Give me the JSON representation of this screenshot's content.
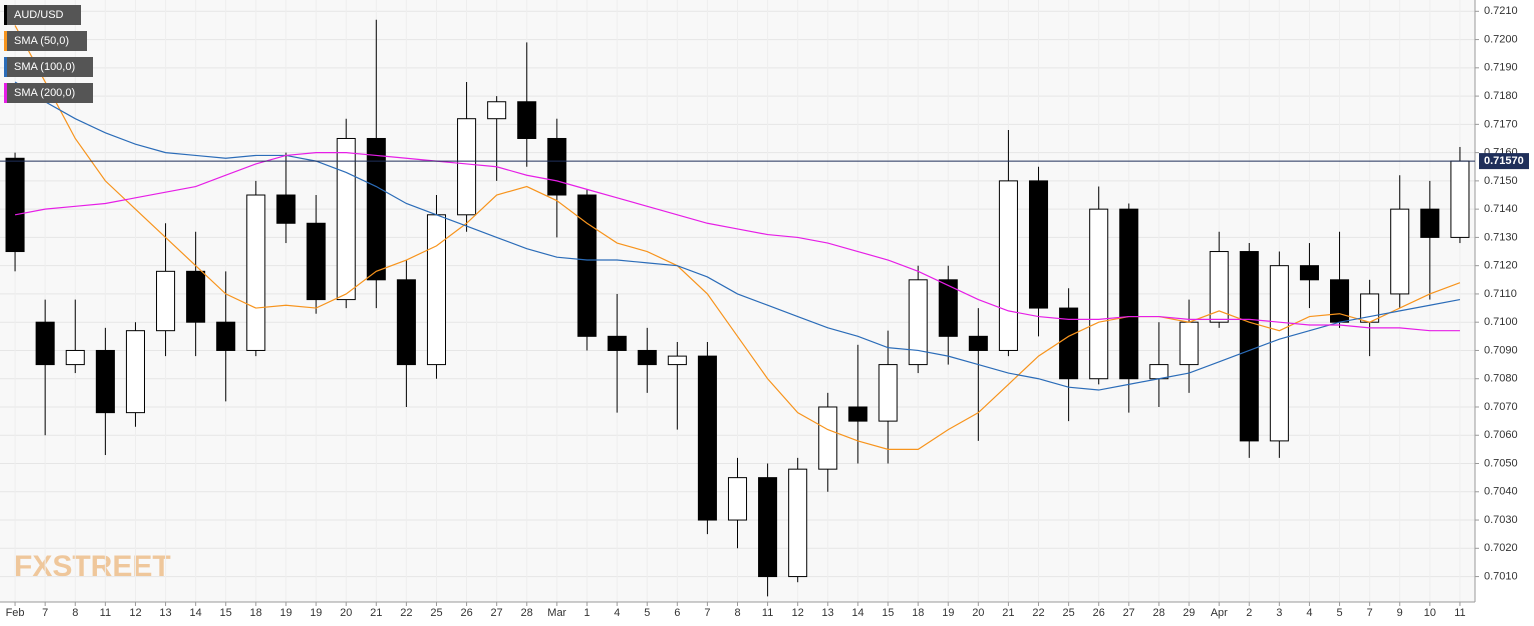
{
  "chart_data": {
    "type": "candlestick",
    "symbol": "AUD/USD",
    "watermark": "FXSTREET",
    "categories": [
      "Feb",
      "7",
      "8",
      "11",
      "12",
      "13",
      "14",
      "15",
      "18",
      "19",
      "19",
      "20",
      "21",
      "22",
      "25",
      "26",
      "27",
      "28",
      "Mar",
      "1",
      "4",
      "5",
      "6",
      "7",
      "8",
      "11",
      "12",
      "13",
      "14",
      "15",
      "18",
      "19",
      "20",
      "21",
      "22",
      "25",
      "26",
      "27",
      "28",
      "29",
      "Apr",
      "2",
      "3",
      "4",
      "5",
      "7",
      "9",
      "10",
      "11"
    ],
    "open": [
      0.7158,
      0.71,
      0.7085,
      0.709,
      0.7068,
      0.7097,
      0.7118,
      0.71,
      0.709,
      0.7145,
      0.7135,
      0.7108,
      0.7165,
      0.7115,
      0.7085,
      0.7138,
      0.7172,
      0.7178,
      0.7165,
      0.7145,
      0.7095,
      0.709,
      0.7085,
      0.7088,
      0.703,
      0.7045,
      0.701,
      0.7048,
      0.707,
      0.7065,
      0.7085,
      0.7115,
      0.7095,
      0.709,
      0.715,
      0.7105,
      0.708,
      0.714,
      0.708,
      0.7085,
      0.71,
      0.7125,
      0.7058,
      0.712,
      0.7115,
      0.71,
      0.711,
      0.714,
      0.713
    ],
    "high": [
      0.716,
      0.7108,
      0.7108,
      0.7098,
      0.71,
      0.7135,
      0.7132,
      0.7118,
      0.715,
      0.716,
      0.7145,
      0.7172,
      0.7207,
      0.7122,
      0.7145,
      0.7185,
      0.718,
      0.7199,
      0.7172,
      0.7147,
      0.711,
      0.7098,
      0.7093,
      0.7093,
      0.7052,
      0.705,
      0.7052,
      0.7075,
      0.7092,
      0.7097,
      0.712,
      0.712,
      0.7105,
      0.7168,
      0.7155,
      0.7112,
      0.7148,
      0.7142,
      0.71,
      0.7108,
      0.7132,
      0.7128,
      0.7125,
      0.7128,
      0.7132,
      0.7115,
      0.7152,
      0.715,
      0.7162
    ],
    "low": [
      0.7118,
      0.706,
      0.7082,
      0.7053,
      0.7063,
      0.7088,
      0.7088,
      0.7072,
      0.7088,
      0.7128,
      0.7103,
      0.7105,
      0.7105,
      0.707,
      0.708,
      0.7132,
      0.715,
      0.7155,
      0.713,
      0.709,
      0.7068,
      0.7075,
      0.7062,
      0.7025,
      0.702,
      0.7003,
      0.7008,
      0.704,
      0.705,
      0.705,
      0.7082,
      0.7085,
      0.7058,
      0.7088,
      0.7095,
      0.7065,
      0.7078,
      0.7068,
      0.707,
      0.7075,
      0.7098,
      0.7052,
      0.7052,
      0.7105,
      0.7098,
      0.7088,
      0.7105,
      0.7108,
      0.7128
    ],
    "close": [
      0.7125,
      0.7085,
      0.709,
      0.7068,
      0.7097,
      0.7118,
      0.71,
      0.709,
      0.7145,
      0.7135,
      0.7108,
      0.7165,
      0.7115,
      0.7085,
      0.7138,
      0.7172,
      0.7178,
      0.7165,
      0.7145,
      0.7095,
      0.709,
      0.7085,
      0.7088,
      0.703,
      0.7045,
      0.701,
      0.7048,
      0.707,
      0.7065,
      0.7085,
      0.7115,
      0.7095,
      0.709,
      0.715,
      0.7105,
      0.708,
      0.714,
      0.708,
      0.7085,
      0.71,
      0.7125,
      0.7058,
      0.712,
      0.7115,
      0.71,
      0.711,
      0.714,
      0.713,
      0.7157
    ],
    "series": [
      {
        "name": "SMA (50,0)",
        "color": "#f7941d",
        "values": [
          0.7205,
          0.7185,
          0.7165,
          0.715,
          0.714,
          0.713,
          0.712,
          0.711,
          0.7105,
          0.7106,
          0.7105,
          0.711,
          0.7118,
          0.7122,
          0.7127,
          0.7135,
          0.7145,
          0.7148,
          0.7143,
          0.7135,
          0.7128,
          0.7125,
          0.712,
          0.711,
          0.7095,
          0.708,
          0.7068,
          0.7062,
          0.7058,
          0.7055,
          0.7055,
          0.7062,
          0.7068,
          0.7078,
          0.7088,
          0.7095,
          0.71,
          0.7102,
          0.7102,
          0.71,
          0.7104,
          0.71,
          0.7097,
          0.7102,
          0.7103,
          0.71,
          0.7105,
          0.711,
          0.7114
        ]
      },
      {
        "name": "SMA (100,0)",
        "color": "#2b6cb8",
        "values": [
          0.7185,
          0.7178,
          0.7172,
          0.7167,
          0.7163,
          0.716,
          0.7159,
          0.7158,
          0.7159,
          0.7159,
          0.7157,
          0.7153,
          0.7148,
          0.7142,
          0.7138,
          0.7134,
          0.713,
          0.7126,
          0.7123,
          0.7122,
          0.7122,
          0.7121,
          0.712,
          0.7116,
          0.711,
          0.7106,
          0.7102,
          0.7098,
          0.7095,
          0.7091,
          0.709,
          0.7088,
          0.7085,
          0.7082,
          0.708,
          0.7077,
          0.7076,
          0.7078,
          0.708,
          0.7082,
          0.7086,
          0.709,
          0.7094,
          0.7097,
          0.71,
          0.7102,
          0.7104,
          0.7106,
          0.7108
        ]
      },
      {
        "name": "SMA (200,0)",
        "color": "#e61ee6",
        "values": [
          0.7138,
          0.714,
          0.7141,
          0.7142,
          0.7144,
          0.7146,
          0.7148,
          0.7152,
          0.7156,
          0.7159,
          0.716,
          0.716,
          0.7159,
          0.7158,
          0.7157,
          0.7156,
          0.7155,
          0.7152,
          0.715,
          0.7147,
          0.7144,
          0.7141,
          0.7138,
          0.7135,
          0.7133,
          0.7131,
          0.713,
          0.7128,
          0.7125,
          0.7122,
          0.7118,
          0.7113,
          0.7108,
          0.7104,
          0.7102,
          0.7101,
          0.7101,
          0.7102,
          0.7102,
          0.7101,
          0.7101,
          0.7101,
          0.71,
          0.7099,
          0.7099,
          0.7098,
          0.7098,
          0.7097,
          0.7097
        ]
      }
    ],
    "last_price": {
      "value": 0.7157,
      "label": "0.71570"
    },
    "ylim": [
      0.7001,
      0.7214
    ],
    "yticks": [
      {
        "value": 0.701,
        "label": "0.7010"
      },
      {
        "value": 0.702,
        "label": "0.7020"
      },
      {
        "value": 0.703,
        "label": "0.7030"
      },
      {
        "value": 0.704,
        "label": "0.7040"
      },
      {
        "value": 0.705,
        "label": "0.7050"
      },
      {
        "value": 0.706,
        "label": "0.7060"
      },
      {
        "value": 0.707,
        "label": "0.7070"
      },
      {
        "value": 0.708,
        "label": "0.7080"
      },
      {
        "value": 0.709,
        "label": "0.7090"
      },
      {
        "value": 0.71,
        "label": "0.7100"
      },
      {
        "value": 0.711,
        "label": "0.7110"
      },
      {
        "value": 0.712,
        "label": "0.7120"
      },
      {
        "value": 0.713,
        "label": "0.7130"
      },
      {
        "value": 0.714,
        "label": "0.7140"
      },
      {
        "value": 0.715,
        "label": "0.7150"
      },
      {
        "value": 0.716,
        "label": "0.7160"
      },
      {
        "value": 0.717,
        "label": "0.7170"
      },
      {
        "value": 0.718,
        "label": "0.7180"
      },
      {
        "value": 0.719,
        "label": "0.7190"
      },
      {
        "value": 0.72,
        "label": "0.7200"
      },
      {
        "value": 0.721,
        "label": "0.7210"
      }
    ],
    "grid": true
  }
}
